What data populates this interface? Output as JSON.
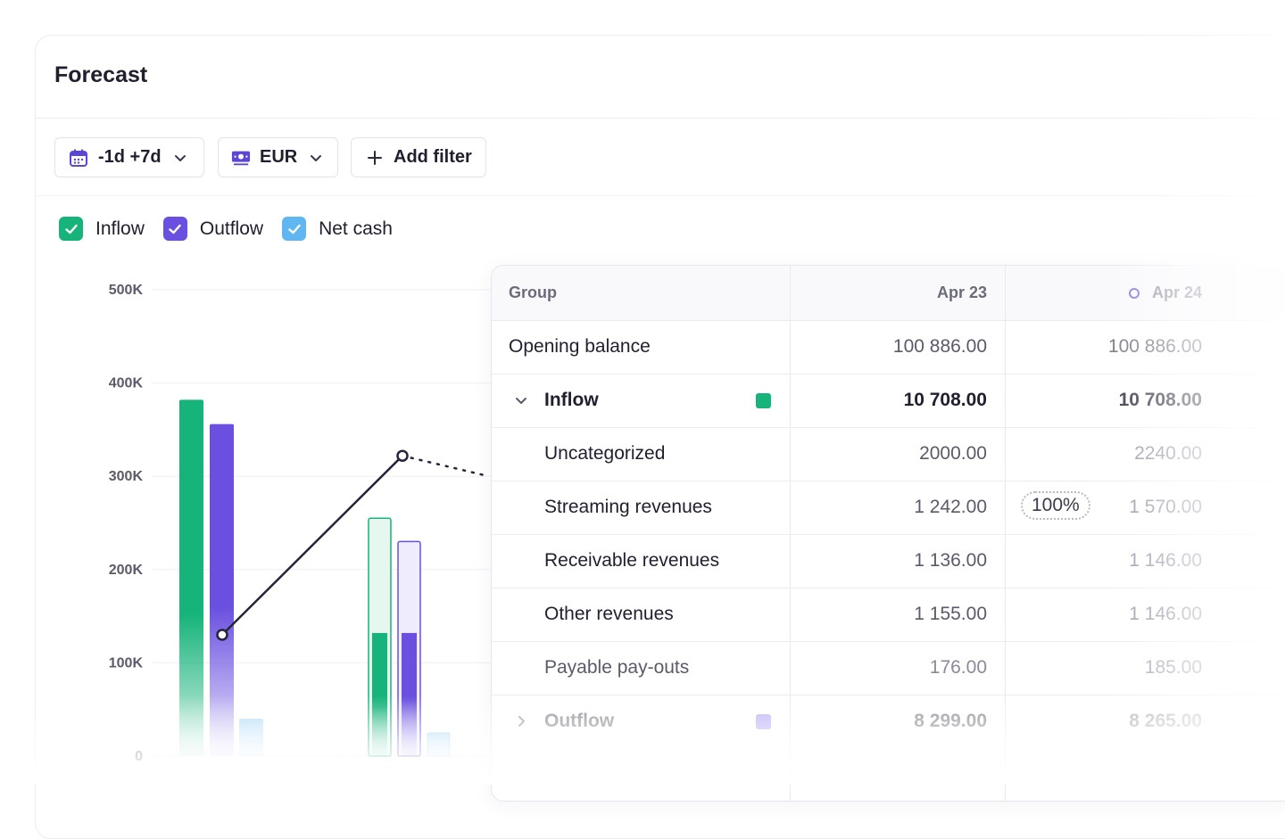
{
  "header": {
    "title": "Forecast"
  },
  "toolbar": {
    "range_label": "-1d +7d",
    "currency_label": "EUR",
    "add_filter_label": "Add filter"
  },
  "legend": [
    {
      "label": "Inflow",
      "color": "#16b37a"
    },
    {
      "label": "Outflow",
      "color": "#6a4fe0"
    },
    {
      "label": "Net cash",
      "color": "#5fb6f0"
    }
  ],
  "chart_data": {
    "type": "bar",
    "y_ticks": [
      "500K",
      "400K",
      "300K",
      "200K",
      "100K",
      "0"
    ],
    "ylim": [
      0,
      500000
    ],
    "groups": [
      {
        "inflow": 382000,
        "outflow": 356000,
        "net": 40000
      },
      {
        "inflow": 255000,
        "outflow": 230000,
        "net": 25000,
        "inflow_actual": 132000,
        "outflow_actual": 132000
      }
    ],
    "net_line": [
      130000,
      322000,
      300000
    ]
  },
  "table": {
    "headers": {
      "group": "Group",
      "col1": "Apr 23",
      "col2": "Apr 24"
    },
    "rows": [
      {
        "label": "Opening balance",
        "v1": "100 886.00",
        "v2": "100 886.00"
      },
      {
        "label": "Inflow",
        "v1": "10 708.00",
        "v2": "10 708.00"
      },
      {
        "label": "Uncategorized",
        "v1": "2000.00",
        "v2": "2240.00"
      },
      {
        "label": "Streaming revenues",
        "v1": "1 242.00",
        "v2": "1 570.00",
        "badge": "100%"
      },
      {
        "label": "Receivable revenues",
        "v1": "1 136.00",
        "v2": "1 146.00"
      },
      {
        "label": "Other revenues",
        "v1": "1 155.00",
        "v2": "1 146.00"
      },
      {
        "label": "Payable pay-outs",
        "v1": "176.00",
        "v2": "185.00"
      },
      {
        "label": "Outflow",
        "v1": "8 299.00",
        "v2": "8 265.00"
      }
    ]
  },
  "colors": {
    "inflow": "#16b37a",
    "outflow": "#6a4fe0",
    "net": "#5fb6f0"
  }
}
